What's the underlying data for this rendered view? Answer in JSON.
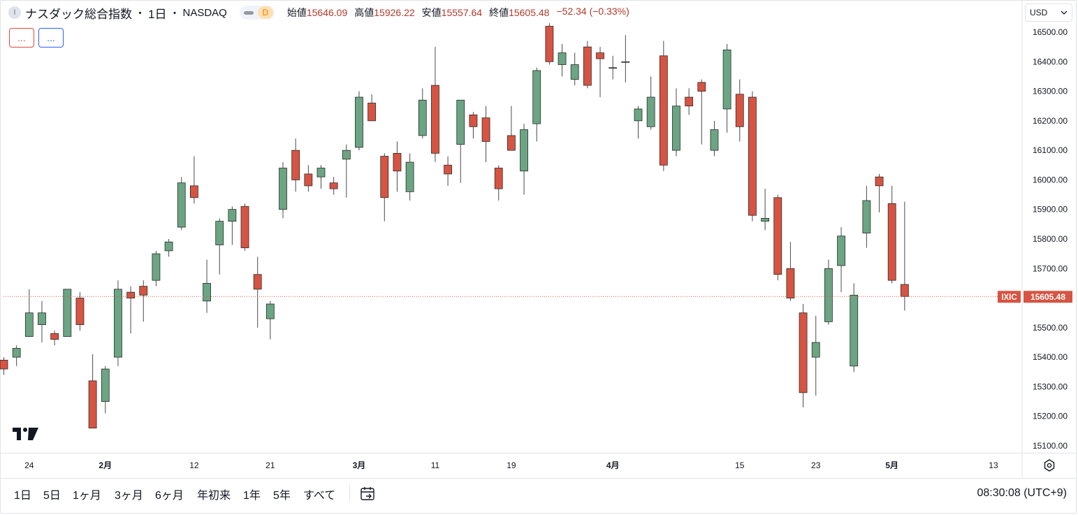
{
  "legend": {
    "symbol_initial": "I",
    "title": "ナスダック総合指数",
    "separator": "・",
    "interval": "1日",
    "exchange": "NASDAQ",
    "status_letter": "D",
    "open_label": "始値",
    "open_value": "15646.09",
    "high_label": "高値",
    "high_value": "15926.22",
    "low_label": "安値",
    "low_value": "15557.64",
    "close_label": "終値",
    "close_value": "15605.48",
    "change": "−52.34 (−0.33%)"
  },
  "indicator_buttons": [
    "...",
    "..."
  ],
  "currency": {
    "label": "USD",
    "icon": "chevron-down-icon"
  },
  "price_tag": {
    "symbol": "IXIC",
    "value": "15605.48"
  },
  "toolbar": {
    "ranges": [
      "1日",
      "5日",
      "1ヶ月",
      "3ヶ月",
      "6ヶ月",
      "年初来",
      "1年",
      "5年",
      "すべて"
    ],
    "clock": "08:30:08 (UTC+9)"
  },
  "colors": {
    "up": "#6ba583",
    "down": "#d75442",
    "wick": "#4a4a4a",
    "tag": "#d75442"
  },
  "chart_data": {
    "type": "candlestick",
    "title": "ナスダック総合指数",
    "ylim": [
      15060,
      16570
    ],
    "y_ticks": [
      15100,
      15200,
      15300,
      15400,
      15500,
      15600,
      15700,
      15800,
      15900,
      16000,
      16100,
      16200,
      16300,
      16400,
      16500
    ],
    "y_tick_labels": [
      "15100.00",
      "15200.00",
      "15300.00",
      "15400.00",
      "15500.00",
      "15600.00",
      "15700.00",
      "15800.00",
      "15900.00",
      "16000.00",
      "16100.00",
      "16200.00",
      "16300.00",
      "16400.00",
      "16500.00"
    ],
    "x_ticks": [
      {
        "label": "24",
        "bar": 2,
        "bold": false
      },
      {
        "label": "2月",
        "bar": 8,
        "bold": true
      },
      {
        "label": "12",
        "bar": 15,
        "bold": false
      },
      {
        "label": "21",
        "bar": 21,
        "bold": false
      },
      {
        "label": "3月",
        "bar": 28,
        "bold": true
      },
      {
        "label": "11",
        "bar": 34,
        "bold": false
      },
      {
        "label": "19",
        "bar": 40,
        "bold": false
      },
      {
        "label": "4月",
        "bar": 48,
        "bold": true
      },
      {
        "label": "15",
        "bar": 58,
        "bold": false
      },
      {
        "label": "23",
        "bar": 64,
        "bold": false
      },
      {
        "label": "5月",
        "bar": 70,
        "bold": true
      },
      {
        "label": "13",
        "bar": 78,
        "bold": false
      }
    ],
    "last_close": 15605.48,
    "ohlc": [
      [
        15390,
        15400,
        15340,
        15360
      ],
      [
        15400,
        15440,
        15370,
        15430
      ],
      [
        15470,
        15630,
        15470,
        15550
      ],
      [
        15510,
        15590,
        15450,
        15550
      ],
      [
        15480,
        15490,
        15440,
        15460
      ],
      [
        15470,
        15630,
        15470,
        15630
      ],
      [
        15600,
        15620,
        15490,
        15510
      ],
      [
        15320,
        15410,
        15160,
        15160
      ],
      [
        15250,
        15370,
        15210,
        15360
      ],
      [
        15400,
        15660,
        15370,
        15630
      ],
      [
        15620,
        15640,
        15480,
        15600
      ],
      [
        15640,
        15660,
        15520,
        15610
      ],
      [
        15660,
        15760,
        15640,
        15750
      ],
      [
        15760,
        15800,
        15740,
        15790
      ],
      [
        15840,
        16010,
        15830,
        15990
      ],
      [
        15980,
        16080,
        15920,
        15940
      ],
      [
        15590,
        15730,
        15550,
        15650
      ],
      [
        15780,
        15870,
        15680,
        15860
      ],
      [
        15860,
        15910,
        15780,
        15900
      ],
      [
        15910,
        15920,
        15760,
        15770
      ],
      [
        15680,
        15740,
        15500,
        15630
      ],
      [
        15530,
        15590,
        15460,
        15580
      ],
      [
        15900,
        16060,
        15870,
        16040
      ],
      [
        16100,
        16140,
        15960,
        16000
      ],
      [
        16020,
        16050,
        15960,
        15980
      ],
      [
        16010,
        16050,
        15970,
        16040
      ],
      [
        15990,
        16010,
        15950,
        15970
      ],
      [
        16070,
        16120,
        15940,
        16100
      ],
      [
        16110,
        16300,
        16100,
        16280
      ],
      [
        16260,
        16290,
        16200,
        16200
      ],
      [
        16080,
        16090,
        15860,
        15940
      ],
      [
        16090,
        16130,
        15960,
        16030
      ],
      [
        15960,
        16090,
        15930,
        16060
      ],
      [
        16150,
        16310,
        16140,
        16270
      ],
      [
        16320,
        16450,
        16060,
        16090
      ],
      [
        16050,
        16080,
        15980,
        16020
      ],
      [
        16120,
        16270,
        15990,
        16270
      ],
      [
        16220,
        16230,
        16140,
        16180
      ],
      [
        16210,
        16250,
        16060,
        16130
      ],
      [
        16040,
        16050,
        15930,
        15970
      ],
      [
        16150,
        16250,
        16110,
        16100
      ],
      [
        16030,
        16190,
        15950,
        16170
      ],
      [
        16190,
        16380,
        16130,
        16370
      ],
      [
        16520,
        16530,
        16390,
        16400
      ],
      [
        16390,
        16460,
        16350,
        16430
      ],
      [
        16340,
        16430,
        16320,
        16390
      ],
      [
        16450,
        16470,
        16310,
        16320
      ],
      [
        16430,
        16450,
        16280,
        16410
      ],
      [
        16380,
        16420,
        16340,
        16380
      ],
      [
        16400,
        16490,
        16330,
        16400
      ],
      [
        16200,
        16250,
        16140,
        16240
      ],
      [
        16180,
        16350,
        16170,
        16280
      ],
      [
        16420,
        16470,
        16030,
        16050
      ],
      [
        16100,
        16310,
        16080,
        16250
      ],
      [
        16280,
        16310,
        16220,
        16250
      ],
      [
        16330,
        16340,
        16120,
        16300
      ],
      [
        16100,
        16200,
        16080,
        16170
      ],
      [
        16240,
        16460,
        16160,
        16440
      ],
      [
        16290,
        16340,
        16130,
        16180
      ],
      [
        16280,
        16300,
        15860,
        15880
      ],
      [
        15860,
        15970,
        15830,
        15870
      ],
      [
        15940,
        15950,
        15660,
        15680
      ],
      [
        15700,
        15790,
        15590,
        15600
      ],
      [
        15550,
        15580,
        15230,
        15280
      ],
      [
        15400,
        15540,
        15270,
        15450
      ],
      [
        15520,
        15730,
        15510,
        15700
      ],
      [
        15710,
        15840,
        15620,
        15810
      ],
      [
        15370,
        15650,
        15350,
        15610
      ],
      [
        15820,
        15980,
        15770,
        15930
      ],
      [
        16010,
        16020,
        15890,
        15980
      ],
      [
        15920,
        15980,
        15650,
        15660
      ],
      [
        15646.09,
        15926.22,
        15557.64,
        15605.48
      ]
    ]
  }
}
